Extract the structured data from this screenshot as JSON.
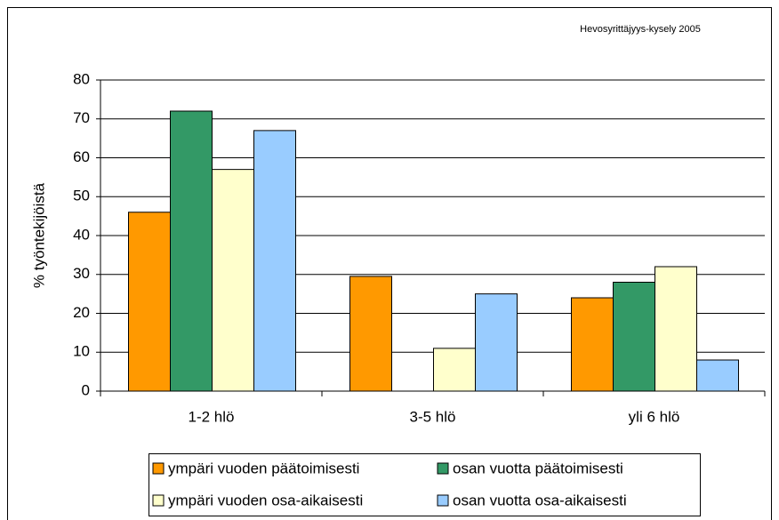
{
  "chart_data": {
    "type": "bar",
    "annotation": "Hevosyrittäjyys-kysely 2005",
    "ylabel": "% työntekijöistä",
    "categories": [
      "1-2 hlö",
      "3-5 hlö",
      "yli 6 hlö"
    ],
    "series": [
      {
        "name": "ympäri vuoden päätoimisesti",
        "color": "#ff9900",
        "values": [
          46,
          29.5,
          24
        ]
      },
      {
        "name": "osan vuotta päätoimisesti",
        "color": "#339966",
        "values": [
          72,
          0,
          28
        ]
      },
      {
        "name": "ympäri vuoden osa-aikaisesti",
        "color": "#ffffcc",
        "values": [
          57,
          11,
          32
        ]
      },
      {
        "name": "osan vuotta osa-aikaisesti",
        "color": "#99ccff",
        "values": [
          67,
          25,
          8
        ]
      }
    ],
    "ylim": [
      0,
      80
    ],
    "yticks": [
      0,
      10,
      20,
      30,
      40,
      50,
      60,
      70,
      80
    ],
    "grid": true
  }
}
